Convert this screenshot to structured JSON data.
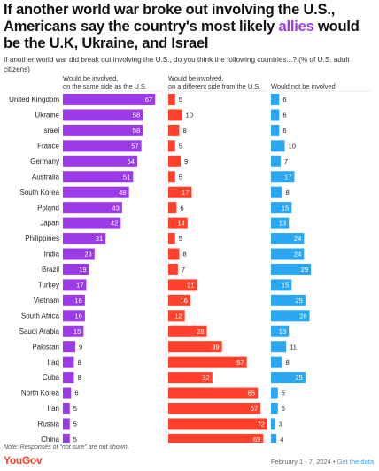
{
  "header": {
    "title_pre": "If another world war broke out involving the U.S., Americans say the country's most likely ",
    "title_highlight": "allies",
    "title_post": " would be the U.K, Ukraine, and Israel",
    "subtitle": "If another world war did break out involving the U.S., do you think the following countries...? (% of U.S. adult citizens)"
  },
  "footer": {
    "note": "Note: Responses of \"not sure\" are not shown.",
    "logo": "YouGov",
    "date": "February 1 - 7, 2024",
    "separator": " • ",
    "link": "Get the data"
  },
  "colors": {
    "same_side": "#9b3be8",
    "different_side": "#ff412c",
    "not_involved": "#2aa7f0",
    "highlight": "#9b3be8"
  },
  "chart_data": {
    "type": "bar",
    "orientation": "horizontal",
    "layout": "small-multiples",
    "categories": [
      "United Kingdom",
      "Ukraine",
      "Israel",
      "France",
      "Germany",
      "Australia",
      "South Korea",
      "Poland",
      "Japan",
      "Philippines",
      "India",
      "Brazil",
      "Turkey",
      "Vietnam",
      "South Africa",
      "Saudi Arabia",
      "Pakistan",
      "Iraq",
      "Cuba",
      "North Korea",
      "Iran",
      "Russia",
      "China"
    ],
    "series": [
      {
        "name": "Would be involved, on the same side as the U.S.",
        "color": "#9b3be8",
        "values": [
          67,
          58,
          58,
          57,
          54,
          51,
          48,
          43,
          42,
          31,
          23,
          19,
          17,
          16,
          16,
          15,
          9,
          8,
          8,
          6,
          5,
          5,
          5
        ]
      },
      {
        "name": "Would be involved, on a different side from the U.S.",
        "color": "#ff412c",
        "values": [
          5,
          10,
          8,
          5,
          9,
          5,
          17,
          6,
          14,
          5,
          8,
          7,
          21,
          16,
          12,
          28,
          39,
          57,
          32,
          65,
          67,
          72,
          69
        ]
      },
      {
        "name": "Would not be involved",
        "color": "#2aa7f0",
        "values": [
          6,
          6,
          6,
          10,
          7,
          17,
          8,
          15,
          13,
          24,
          24,
          29,
          15,
          25,
          28,
          13,
          11,
          8,
          25,
          5,
          5,
          3,
          4
        ]
      }
    ],
    "xlim": [
      0,
      72
    ]
  }
}
